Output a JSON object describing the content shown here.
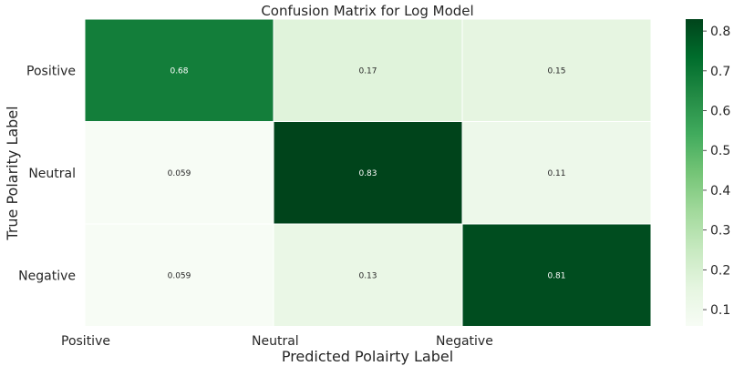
{
  "chart_data": {
    "type": "heatmap",
    "title": "Confusion Matrix for Log Model",
    "xlabel": "Predicted Polairty Label",
    "ylabel": "True Polarity Label",
    "x_tick_labels": [
      "Positive",
      "Neutral",
      "Negative"
    ],
    "y_tick_labels": [
      "Positive",
      "Neutral",
      "Negative"
    ],
    "values": [
      [
        0.68,
        0.17,
        0.15
      ],
      [
        0.059,
        0.83,
        0.11
      ],
      [
        0.059,
        0.13,
        0.81
      ]
    ],
    "value_labels": [
      [
        "0.68",
        "0.17",
        "0.15"
      ],
      [
        "0.059",
        "0.83",
        "0.11"
      ],
      [
        "0.059",
        "0.13",
        "0.81"
      ]
    ],
    "colormap": "Greens",
    "vmin": 0.059,
    "vmax": 0.83,
    "colorbar": {
      "ticks": [
        0.1,
        0.2,
        0.3,
        0.4,
        0.5,
        0.6,
        0.7,
        0.8
      ],
      "tick_labels": [
        "0.1",
        "0.2",
        "0.3",
        "0.4",
        "0.5",
        "0.6",
        "0.7",
        "0.8"
      ]
    }
  }
}
